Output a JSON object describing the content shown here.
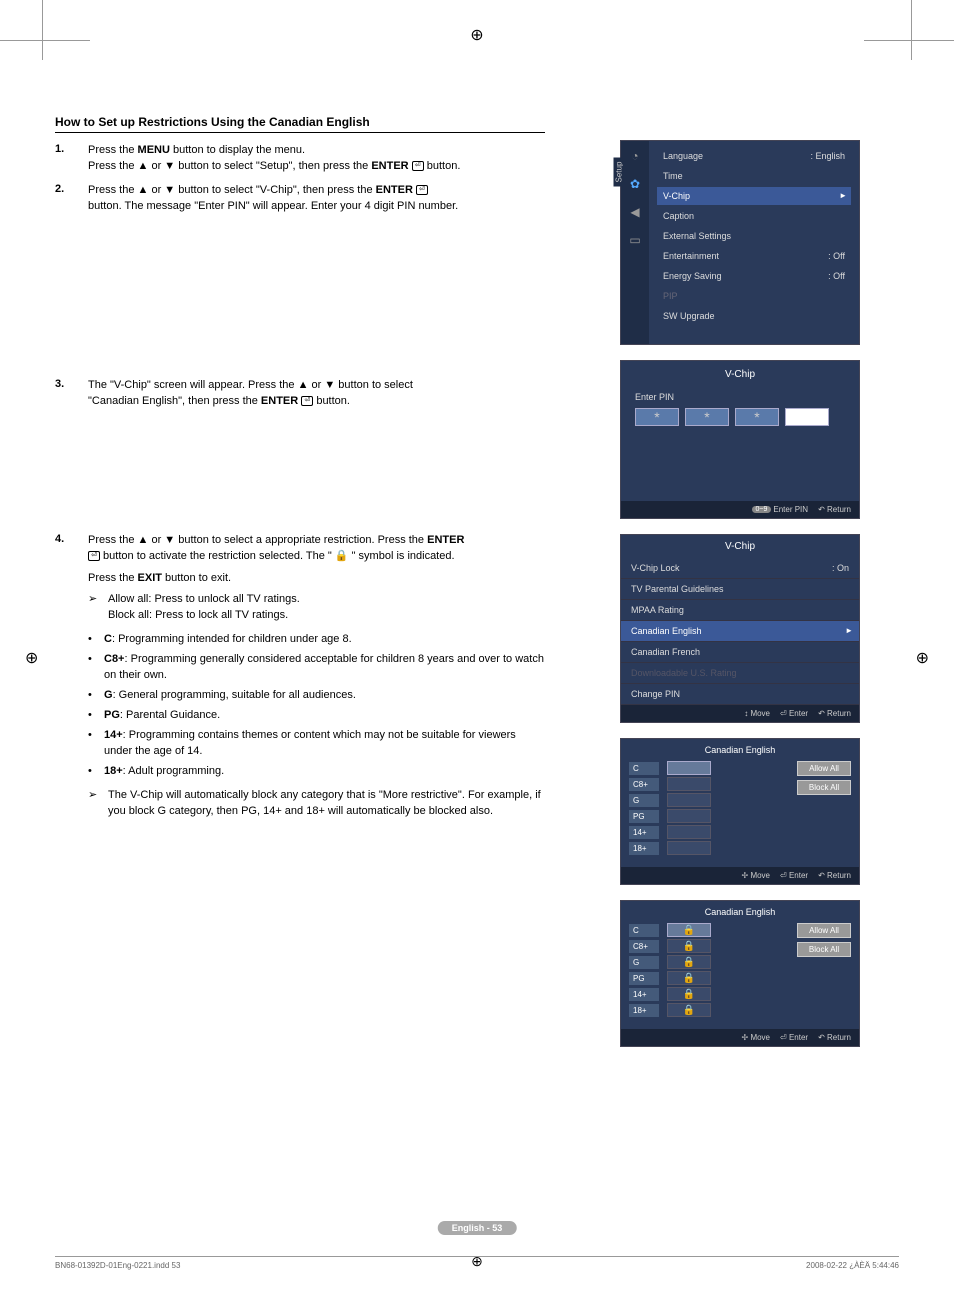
{
  "section_title": "How to Set up Restrictions Using the Canadian English",
  "steps": {
    "s1": {
      "num": "1.",
      "l1a": "Press the ",
      "l1b": "MENU",
      "l1c": " button to display the menu.",
      "l2a": "Press the ▲ or ▼ button to select \"Setup\", then press the ",
      "l2b": "ENTER",
      "l2c": " button."
    },
    "s2": {
      "num": "2.",
      "l1a": "Press the ▲ or ▼ button to select \"V-Chip\", then press the ",
      "l1b": "ENTER",
      "l2": "button. The message \"Enter PIN\" will appear. Enter your 4 digit PIN number."
    },
    "s3": {
      "num": "3.",
      "l1": "The \"V-Chip\" screen will appear. Press the ▲ or ▼ button to select",
      "l2a": "\"Canadian English\", then press the ",
      "l2b": "ENTER",
      "l2c": " button."
    },
    "s4": {
      "num": "4.",
      "l1a": "Press the ▲ or ▼ button to select a appropriate restriction. Press the ",
      "l1b": "ENTER",
      "l2": " button to activate the restriction selected. The \" 🔒 \" symbol is indicated.",
      "l3a": "Press the ",
      "l3b": "EXIT",
      "l3c": " button to exit."
    }
  },
  "allow_block": {
    "allow": "Allow all: Press to unlock all TV ratings.",
    "block": "Block all: Press to lock all TV ratings."
  },
  "ratings_desc": {
    "c": {
      "k": "C",
      "v": ": Programming intended for children under age 8."
    },
    "c8": {
      "k": "C8+",
      "v": ": Programming generally considered acceptable for children 8 years and over to watch on their own."
    },
    "g": {
      "k": "G",
      "v": ": General programming, suitable for all audiences."
    },
    "pg": {
      "k": "PG",
      "v": ": Parental Guidance."
    },
    "r14": {
      "k": "14+",
      "v": ": Programming contains themes or content which may not be suitable for viewers under the age of 14."
    },
    "r18": {
      "k": "18+",
      "v": ": Adult programming."
    }
  },
  "note": "The V-Chip will automatically block any category that is \"More restrictive\". For example, if you block G category, then PG, 14+ and 18+ will automatically be blocked also.",
  "osd_setup": {
    "rotate": "Setup",
    "items": [
      {
        "label": "Language",
        "val": ": English"
      },
      {
        "label": "Time",
        "val": ""
      },
      {
        "label": "V-Chip",
        "val": "",
        "hl": true
      },
      {
        "label": "Caption",
        "val": ""
      },
      {
        "label": "External Settings",
        "val": ""
      },
      {
        "label": "Entertainment",
        "val": ": Off"
      },
      {
        "label": "Energy Saving",
        "val": ": Off"
      },
      {
        "label": "PIP",
        "val": "",
        "dim": true
      },
      {
        "label": "SW Upgrade",
        "val": ""
      }
    ]
  },
  "osd_pin": {
    "title": "V-Chip",
    "label": "Enter PIN",
    "footer": {
      "a": "0~9",
      "at": "Enter PIN",
      "b": "↶ Return"
    }
  },
  "osd_vchip_menu": {
    "title": "V-Chip",
    "items": [
      {
        "label": "V-Chip Lock",
        "val": ": On"
      },
      {
        "label": "TV Parental Guidelines"
      },
      {
        "label": "MPAA Rating"
      },
      {
        "label": "Canadian English",
        "hl": true
      },
      {
        "label": "Canadian French"
      },
      {
        "label": "Downloadable U.S. Rating",
        "dim": true
      },
      {
        "label": "Change PIN"
      }
    ],
    "footer": {
      "a": "↕ Move",
      "b": "⏎ Enter",
      "c": "↶ Return"
    }
  },
  "osd_ce": {
    "title": "Canadian English",
    "ratings": [
      "C",
      "C8+",
      "G",
      "PG",
      "14+",
      "18+"
    ],
    "allow": "Allow All",
    "block": "Block All",
    "footer": {
      "a": "✢ Move",
      "b": "⏎ Enter",
      "c": "↶ Return"
    }
  },
  "page_label": "English - 53",
  "footer": {
    "left": "BN68-01392D-01Eng-0221.indd   53",
    "right": "2008-02-22   ¿ÀÈÄ 5:44:46"
  }
}
